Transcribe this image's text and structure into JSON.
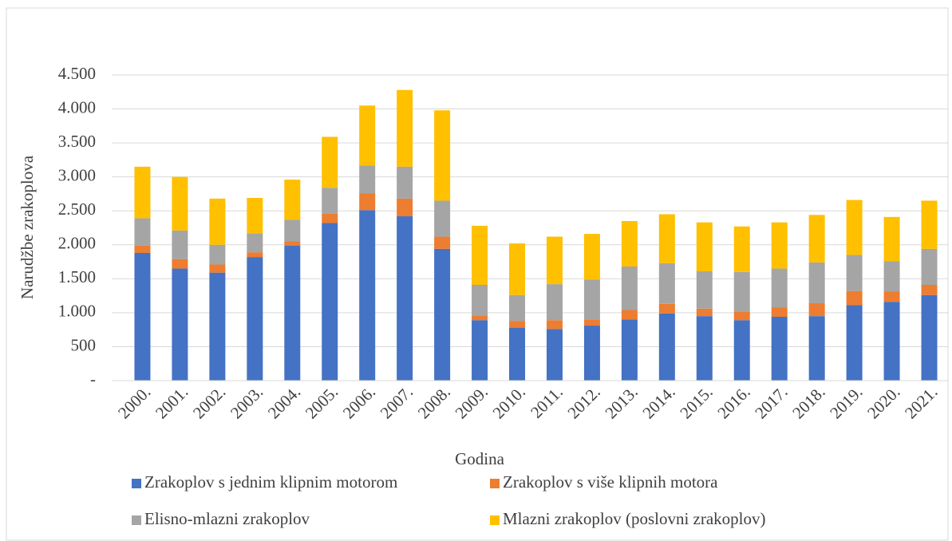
{
  "chart_data": {
    "type": "stacked_bar",
    "x_label": "Godina",
    "y_label": "Narudžbe zrakoplova",
    "categories": [
      "2000.",
      "2001.",
      "2002.",
      "2003.",
      "2004.",
      "2005.",
      "2006.",
      "2007.",
      "2008.",
      "2009.",
      "2010.",
      "2011.",
      "2012.",
      "2013.",
      "2014.",
      "2015.",
      "2016.",
      "2017.",
      "2018.",
      "2019.",
      "2020.",
      "2021."
    ],
    "series": [
      {
        "name": "Zrakoplov s jednim klipnim motorom",
        "color": "#4472c4",
        "values": [
          1880,
          1650,
          1590,
          1820,
          1990,
          2320,
          2510,
          2420,
          1940,
          890,
          780,
          760,
          810,
          900,
          990,
          950,
          890,
          940,
          950,
          1110,
          1160,
          1260
        ]
      },
      {
        "name": "Zrakoplov s više klipnih motora",
        "color": "#ed7d31",
        "values": [
          110,
          140,
          120,
          70,
          60,
          140,
          250,
          260,
          180,
          70,
          100,
          130,
          90,
          140,
          140,
          110,
          130,
          140,
          190,
          210,
          150,
          150
        ]
      },
      {
        "name": "Elisno-mlazni zrakoplov",
        "color": "#a5a5a5",
        "values": [
          400,
          420,
          290,
          280,
          320,
          380,
          410,
          470,
          530,
          450,
          380,
          530,
          590,
          640,
          600,
          550,
          580,
          570,
          600,
          530,
          450,
          530
        ]
      },
      {
        "name": "Mlazni zrakoplov (poslovni zrakoplov)",
        "color": "#ffc000",
        "values": [
          760,
          790,
          680,
          520,
          590,
          750,
          880,
          1130,
          1330,
          870,
          760,
          700,
          670,
          670,
          720,
          720,
          670,
          680,
          700,
          810,
          650,
          710
        ]
      }
    ],
    "ylim": [
      0,
      4500
    ],
    "yticks": [
      {
        "value": 0,
        "label": "-"
      },
      500,
      {
        "value": 1000,
        "label": "1.000"
      },
      {
        "value": 1500,
        "label": "1.500"
      },
      {
        "value": 2000,
        "label": "2.000"
      },
      {
        "value": 2500,
        "label": "2.500"
      },
      {
        "value": 3000,
        "label": "3.000"
      },
      {
        "value": 3500,
        "label": "3.500"
      },
      {
        "value": 4000,
        "label": "4.000"
      },
      {
        "value": 4500,
        "label": "4.500"
      }
    ],
    "grid": true,
    "legend": "bottom"
  }
}
